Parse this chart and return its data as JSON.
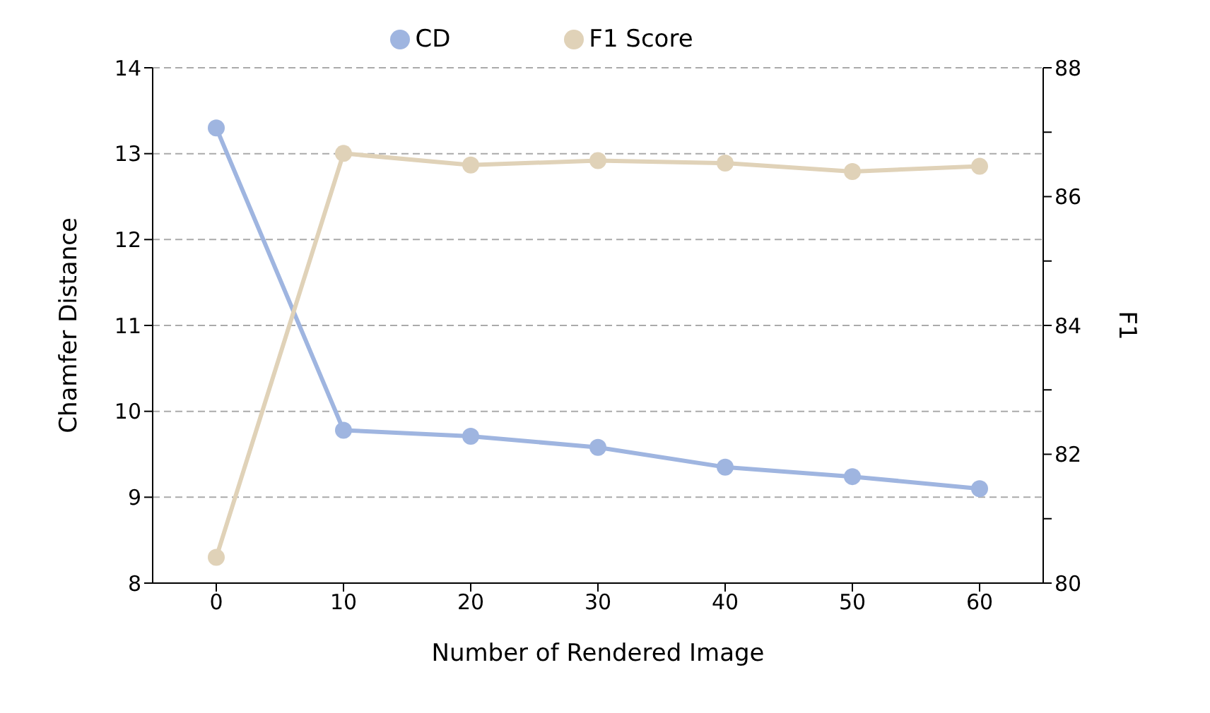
{
  "chart_data": {
    "type": "line",
    "xlabel": "Number of Rendered Image",
    "ylabel": "Chamfer Distance",
    "y2label": "F1",
    "x": [
      0,
      10,
      20,
      30,
      40,
      50,
      60
    ],
    "series": [
      {
        "name": "CD",
        "color": "#9fb5e0",
        "values": [
          13.3,
          9.78,
          9.71,
          9.58,
          9.35,
          9.24,
          9.1
        ]
      },
      {
        "name": "F1 Score",
        "color": "#e0d2b8",
        "axis": "y2",
        "values": [
          80.4,
          86.67,
          86.49,
          86.56,
          86.52,
          86.39,
          86.47
        ]
      }
    ],
    "xlim": [
      -5,
      65
    ],
    "xticks": [
      0,
      10,
      20,
      30,
      40,
      50,
      60
    ],
    "ylim": [
      8,
      14
    ],
    "yticks": [
      8,
      9,
      10,
      11,
      12,
      13,
      14
    ],
    "y2lim": [
      80,
      88
    ],
    "y2ticks": [
      80,
      {
        "value": 81,
        "label": null
      },
      82,
      {
        "value": 83,
        "label": null
      },
      84,
      {
        "value": 85,
        "label": null
      },
      86,
      {
        "value": 87,
        "label": null
      },
      88
    ],
    "grid": "y",
    "legend": "top",
    "marker": "circle",
    "line_style": "solid"
  }
}
